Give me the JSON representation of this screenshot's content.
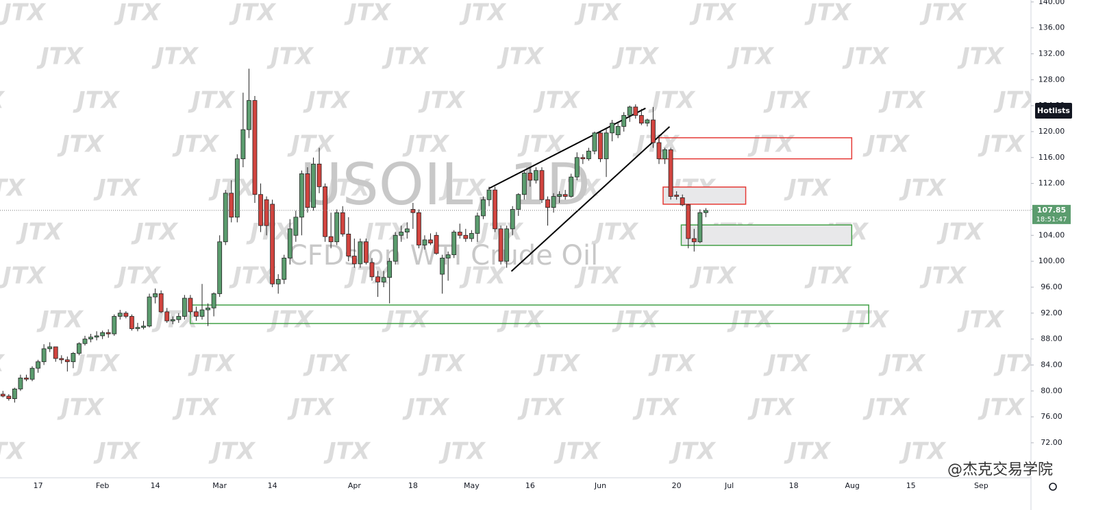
{
  "chart_data": {
    "type": "candlestick",
    "title": "USOIL, 1D",
    "subtitle": "CFDs on WTI Crude Oil",
    "watermark": "JTX",
    "credit": "@杰克交易学院",
    "button": "Hotlists",
    "countdown": "18:51:47",
    "current_price": {
      "value": 107.85,
      "label": "107.85"
    },
    "up_color": "#5b9c6e",
    "down_color": "#d1443f",
    "wick_color": "#222222",
    "grid": false,
    "categories": [
      null,
      null,
      null,
      null,
      null,
      null,
      "17",
      null,
      null,
      null,
      null,
      null,
      null,
      null,
      null,
      null,
      null,
      "Feb",
      null,
      null,
      null,
      null,
      null,
      null,
      null,
      null,
      "14",
      null,
      null,
      null,
      null,
      null,
      null,
      null,
      null,
      null,
      null,
      "Mar",
      null,
      null,
      null,
      null,
      null,
      null,
      null,
      null,
      "14",
      null,
      null,
      null,
      null,
      null,
      null,
      null,
      null,
      null,
      null,
      null,
      null,
      null,
      "Apr",
      null,
      null,
      null,
      null,
      null,
      null,
      null,
      null,
      null,
      "18",
      null,
      null,
      null,
      null,
      null,
      null,
      null,
      null,
      null,
      "May",
      null,
      null,
      null,
      null,
      null,
      null,
      null,
      null,
      null,
      "16",
      null,
      null,
      null,
      null,
      null,
      null,
      null,
      null,
      null,
      null,
      null,
      "Jun",
      null,
      null,
      null,
      null,
      null,
      null,
      null,
      null,
      null,
      null,
      null,
      null,
      "20",
      null,
      null,
      null,
      null,
      null,
      null,
      null,
      null,
      "Jul",
      null,
      null,
      null,
      null,
      null,
      null,
      null,
      null,
      null,
      null,
      "18",
      null,
      null,
      null,
      null,
      null,
      null,
      null,
      null,
      null,
      "Aug",
      null,
      null,
      null,
      null,
      null,
      null,
      null,
      null,
      null,
      "15",
      null,
      null,
      null,
      null,
      null,
      null,
      null,
      null,
      null,
      null,
      null,
      "Sep",
      null,
      null,
      null,
      null,
      null,
      null,
      null,
      null
    ],
    "open": [
      79.5,
      79.2,
      78.8,
      80.3,
      82,
      81.8,
      83.5,
      84.5,
      86.5,
      86.8,
      85,
      84.8,
      84.5,
      85.8,
      87.3,
      88,
      88.3,
      88.5,
      89,
      88.8,
      91.5,
      92,
      91.5,
      89.6,
      89.8,
      90,
      94.5,
      95,
      92.2,
      90.8,
      91,
      91.5,
      94.3,
      92.2,
      91.5,
      92.5,
      92.8,
      95,
      103,
      110.5,
      106.8,
      115.8,
      120.3,
      124.8,
      110.3,
      109.5,
      108.8,
      96.5,
      97.2,
      100.5,
      104,
      106.8,
      113.5,
      108.3,
      115,
      111.5,
      103.8,
      103,
      107.5,
      104.2,
      100.8,
      99.6,
      103,
      99.8,
      97.6,
      96.8,
      97.5,
      100,
      104,
      104.5,
      108,
      107.5,
      102.5,
      103.3,
      104,
      98,
      100.5,
      101,
      104.5,
      104,
      103.5,
      104.3,
      107,
      109.5,
      111,
      105,
      100,
      105,
      108,
      110.3,
      113.6,
      112.5,
      114,
      109.5,
      108.3,
      110,
      110.3,
      110,
      113,
      116,
      115.8,
      117,
      119.8,
      115.8,
      119.8,
      119.5,
      120.8,
      122.5,
      123.8,
      122.5,
      121.3,
      121.8,
      118.3,
      115.8,
      117.2,
      110.2,
      109.8,
      108.7,
      103.5,
      103,
      107.5,
      null,
      null,
      null,
      null,
      null,
      null,
      null,
      null,
      null,
      null,
      null,
      null,
      null,
      null,
      null,
      null,
      null,
      null,
      null,
      null,
      null,
      null,
      null,
      null,
      null,
      null,
      null,
      null,
      null,
      null,
      null,
      null,
      null,
      null,
      null,
      null,
      null,
      null,
      null,
      null,
      null,
      null,
      null,
      null,
      null,
      null,
      null,
      null,
      null,
      null,
      null,
      null,
      null,
      null,
      null
    ],
    "high": [
      80,
      79.5,
      80.5,
      82.5,
      82.5,
      83.8,
      84.8,
      87.2,
      87.5,
      86.8,
      85.5,
      85.3,
      86,
      87.5,
      88.5,
      88.8,
      89.2,
      89.3,
      89.5,
      91.8,
      92.5,
      92.3,
      91.8,
      90.5,
      90.8,
      95,
      95.8,
      95.5,
      92.8,
      91.5,
      92,
      94.8,
      94.8,
      93,
      96.5,
      93.5,
      95.2,
      104,
      111,
      112.5,
      116.5,
      126,
      129.7,
      125.5,
      112,
      110,
      109.5,
      98,
      101,
      106.5,
      107.8,
      114,
      114.5,
      116,
      117.5,
      112,
      107.5,
      108,
      108.5,
      106.8,
      103.5,
      103.5,
      103.5,
      100.5,
      98.5,
      98.5,
      100.5,
      104.5,
      105.5,
      106,
      109,
      108,
      104,
      104.3,
      104.5,
      101,
      101.5,
      104.8,
      105.8,
      105,
      104.8,
      107.5,
      110,
      111.5,
      111.5,
      105.5,
      105.5,
      108.5,
      110.5,
      114,
      114.5,
      114.5,
      114.5,
      110,
      110.5,
      110.8,
      111,
      113.5,
      116.8,
      116.5,
      117.5,
      120,
      120,
      120.5,
      121.8,
      121.3,
      123,
      124,
      124.2,
      123.5,
      122,
      123.8,
      119.5,
      117.5,
      117.5,
      110.8,
      110.3,
      108.8,
      105,
      108,
      108.2,
      null,
      null,
      null,
      null,
      null,
      null,
      null,
      null,
      null,
      null,
      null,
      null,
      null,
      null,
      null,
      null,
      null,
      null,
      null,
      null,
      null,
      null,
      null,
      null,
      null,
      null,
      null,
      null,
      null,
      null,
      null,
      null,
      null,
      null,
      null,
      null,
      null,
      null,
      null,
      null,
      null,
      null,
      null,
      null,
      null,
      null,
      null,
      null,
      null,
      null,
      null,
      null,
      null,
      null,
      null
    ],
    "low": [
      79,
      78.5,
      78.2,
      80,
      81.5,
      81.5,
      82.8,
      84,
      86,
      84.5,
      84.2,
      83,
      83.5,
      85.5,
      87,
      87.5,
      87.8,
      88,
      88.2,
      88.5,
      91,
      91.2,
      89.3,
      89.2,
      89.5,
      89.8,
      93.5,
      92,
      90.5,
      90.3,
      90.5,
      91,
      91.8,
      90.8,
      91,
      90,
      91.5,
      94.5,
      102.5,
      106,
      106,
      114.5,
      119,
      109,
      104.5,
      104,
      96,
      95,
      96.5,
      99.5,
      103,
      104,
      107.5,
      107.8,
      110.5,
      103,
      102,
      102.5,
      103.8,
      100,
      99,
      99,
      99.5,
      97,
      94.5,
      96,
      93.5,
      99.5,
      103,
      103.5,
      105,
      102,
      101.8,
      102.5,
      101,
      95,
      97,
      100.5,
      103.5,
      103,
      103,
      103,
      106.5,
      108.5,
      104.5,
      99.5,
      99,
      104,
      107,
      109.5,
      111.5,
      112,
      109,
      105.5,
      107.5,
      109,
      109.5,
      109.8,
      112.5,
      115,
      115.5,
      116.5,
      115.3,
      113,
      118.5,
      119,
      120,
      121.5,
      122,
      121,
      120.8,
      117.5,
      115,
      115,
      109.5,
      109.5,
      108.5,
      102,
      101.5,
      102.8,
      106.8,
      null,
      null,
      null,
      null,
      null,
      null,
      null,
      null,
      null,
      null,
      null,
      null,
      null,
      null,
      null,
      null,
      null,
      null,
      null,
      null,
      null,
      null,
      null,
      null,
      null,
      null,
      null,
      null,
      null,
      null,
      null,
      null,
      null,
      null,
      null,
      null,
      null,
      null,
      null,
      null,
      null,
      null,
      null,
      null,
      null,
      null,
      null,
      null,
      null,
      null,
      null,
      null,
      null,
      null,
      null
    ],
    "close": [
      79.2,
      78.8,
      80.3,
      82,
      81.8,
      83.5,
      84.5,
      86.5,
      86.8,
      85,
      84.8,
      84.5,
      85.8,
      87.3,
      88,
      88.3,
      88.5,
      89,
      88.8,
      91.5,
      92,
      91.5,
      89.6,
      89.8,
      90,
      94.5,
      95,
      92.2,
      90.8,
      91,
      91.5,
      94.3,
      92.2,
      91.5,
      92.5,
      92.8,
      95,
      103,
      110.5,
      106.8,
      115.8,
      120.3,
      124.8,
      110.3,
      105.5,
      105.5,
      96.5,
      97.2,
      100.5,
      105,
      106.8,
      113.5,
      108.3,
      115,
      111.5,
      103.8,
      103,
      107.5,
      104.2,
      100.8,
      99.6,
      103,
      99.8,
      97.6,
      96.8,
      97.5,
      100,
      104,
      104.5,
      105,
      107.5,
      102.5,
      103.3,
      102.8,
      101.2,
      100.5,
      101,
      104.5,
      104,
      103.5,
      104.3,
      107,
      109.5,
      111,
      105,
      100,
      105,
      108,
      110.3,
      113.6,
      112.5,
      114,
      109.5,
      108.3,
      110,
      110.3,
      110,
      113,
      116,
      115.8,
      117,
      119.8,
      115.8,
      119.8,
      121.3,
      120.8,
      122.5,
      123.8,
      122.5,
      121.3,
      121.8,
      118.3,
      115.8,
      117.2,
      110,
      110,
      108.7,
      103.5,
      103,
      107.5,
      107.85,
      null,
      null,
      null,
      null,
      null,
      null,
      null,
      null,
      null,
      null,
      null,
      null,
      null,
      null,
      null,
      null,
      null,
      null,
      null,
      null,
      null,
      null,
      null,
      null,
      null,
      null,
      null,
      null,
      null,
      null,
      null,
      null,
      null,
      null,
      null,
      null,
      null,
      null,
      null,
      null,
      null,
      null,
      null,
      null,
      null,
      null,
      null,
      null,
      null,
      null,
      null,
      null,
      null,
      null,
      null
    ],
    "ylim": [
      66.6,
      140.3
    ],
    "yticks": [
      {
        "value": 72,
        "label": "72.00"
      },
      {
        "value": 76,
        "label": "76.00"
      },
      {
        "value": 80,
        "label": "80.00"
      },
      {
        "value": 84,
        "label": "84.00"
      },
      {
        "value": 88,
        "label": "88.00"
      },
      {
        "value": 92,
        "label": "92.00"
      },
      {
        "value": 96,
        "label": "96.00"
      },
      {
        "value": 100,
        "label": "100.00"
      },
      {
        "value": 104,
        "label": "104.00"
      },
      {
        "value": 108,
        "label": "108.00"
      },
      {
        "value": 112,
        "label": "112.00"
      },
      {
        "value": 116,
        "label": "116.00"
      },
      {
        "value": 120,
        "label": "120.00"
      },
      {
        "value": 124,
        "label": "124.00"
      },
      {
        "value": 128,
        "label": "128.00"
      },
      {
        "value": 132,
        "label": "132.00"
      },
      {
        "value": 136,
        "label": "136.00"
      },
      {
        "value": 140,
        "label": "140.00"
      }
    ],
    "drawings": [
      {
        "kind": "line",
        "x": [
          82.9,
          109.7
        ],
        "y": [
          111.2,
          123.6
        ],
        "color": "#000000"
      },
      {
        "kind": "line",
        "x": [
          86.8,
          113.8
        ],
        "y": [
          98.45,
          120.75
        ],
        "color": "#000000"
      },
      {
        "kind": "box",
        "x": [
          112,
          144.9
        ],
        "y": [
          115.8,
          119.05
        ],
        "color": "#e53935",
        "fill": "none"
      },
      {
        "kind": "box",
        "x": [
          112.7,
          126.8
        ],
        "y": [
          108.8,
          111.45
        ],
        "color": "#e53935",
        "fill": "#e8e8ea"
      },
      {
        "kind": "box",
        "x": [
          115.8,
          144.9
        ],
        "y": [
          102.45,
          105.6
        ],
        "color": "#43a047",
        "fill": "#e8e8ea"
      },
      {
        "kind": "box",
        "x": [
          32,
          147.8
        ],
        "y": [
          90.4,
          93.25
        ],
        "color": "#43a047",
        "fill": "none"
      }
    ]
  }
}
